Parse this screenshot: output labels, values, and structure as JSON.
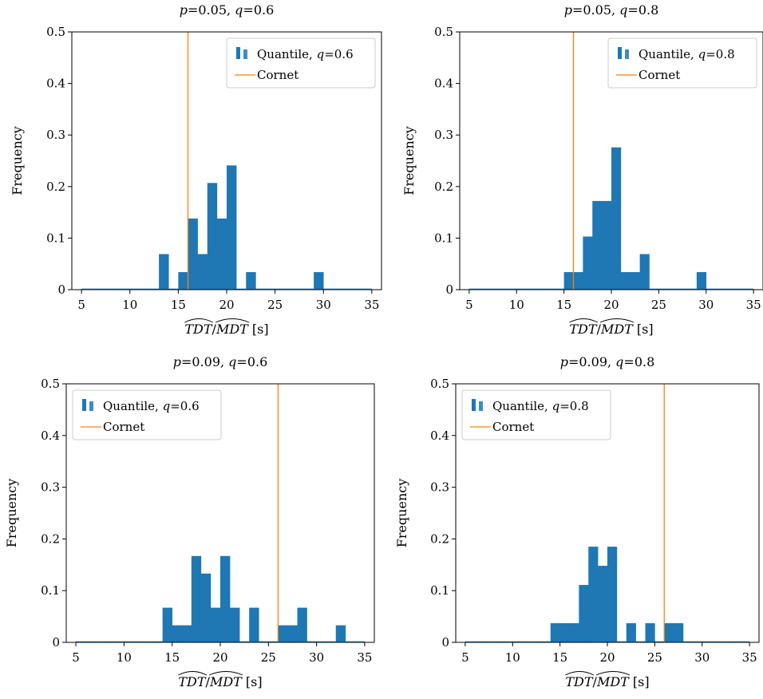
{
  "chart_data": [
    {
      "type": "bar",
      "title": "p=0.05, q=0.6",
      "xlabel": "TDT/MDT [s]",
      "ylabel": "Frequency",
      "xlim": [
        4,
        36
      ],
      "ylim": [
        0,
        0.5
      ],
      "xticks": [
        "5",
        "10",
        "15",
        "20",
        "25",
        "30",
        "35"
      ],
      "yticks": [
        "0",
        "0.1",
        "0.2",
        "0.3",
        "0.4",
        "0.5"
      ],
      "legend": {
        "position": "top-right",
        "entries": [
          "Quantile, q=0.6",
          "Cornet"
        ]
      },
      "cornet_x": 16.0,
      "bin_edges": [
        5,
        6,
        7,
        8,
        9,
        10,
        11,
        12,
        13,
        14,
        15,
        16,
        17,
        18,
        19,
        20,
        21,
        22,
        23,
        24,
        25,
        26,
        27,
        28,
        29,
        30,
        31,
        32,
        33,
        34,
        35
      ],
      "values": [
        0,
        0,
        0,
        0,
        0,
        0,
        0,
        0,
        0.069,
        0,
        0.034,
        0.138,
        0.069,
        0.207,
        0.138,
        0.241,
        0,
        0.034,
        0,
        0,
        0,
        0,
        0,
        0,
        0.034,
        0,
        0,
        0,
        0,
        0
      ],
      "bar_color": "#1f77b4",
      "line_color": "#ff7f0e"
    },
    {
      "type": "bar",
      "title": "p=0.05, q=0.8",
      "xlabel": "TDT/MDT [s]",
      "ylabel": "Frequency",
      "xlim": [
        4,
        36
      ],
      "ylim": [
        0,
        0.5
      ],
      "xticks": [
        "5",
        "10",
        "15",
        "20",
        "25",
        "30",
        "35"
      ],
      "yticks": [
        "0",
        "0.1",
        "0.2",
        "0.3",
        "0.4",
        "0.5"
      ],
      "legend": {
        "position": "top-right",
        "entries": [
          "Quantile, q=0.8",
          "Cornet"
        ]
      },
      "cornet_x": 16.0,
      "bin_edges": [
        5,
        6,
        7,
        8,
        9,
        10,
        11,
        12,
        13,
        14,
        15,
        16,
        17,
        18,
        19,
        20,
        21,
        22,
        23,
        24,
        25,
        26,
        27,
        28,
        29,
        30,
        31,
        32,
        33,
        34,
        35
      ],
      "values": [
        0,
        0,
        0,
        0,
        0,
        0,
        0,
        0,
        0,
        0,
        0.034,
        0.034,
        0.103,
        0.172,
        0.172,
        0.276,
        0.034,
        0.034,
        0.069,
        0,
        0,
        0,
        0,
        0,
        0.034,
        0,
        0,
        0,
        0,
        0
      ],
      "bar_color": "#1f77b4",
      "line_color": "#ff7f0e"
    },
    {
      "type": "bar",
      "title": "p=0.09, q=0.6",
      "xlabel": "TDT/MDT [s]",
      "ylabel": "Frequency",
      "xlim": [
        4,
        36
      ],
      "ylim": [
        0,
        0.5
      ],
      "xticks": [
        "5",
        "10",
        "15",
        "20",
        "25",
        "30",
        "35"
      ],
      "yticks": [
        "0",
        "0.1",
        "0.2",
        "0.3",
        "0.4",
        "0.5"
      ],
      "legend": {
        "position": "top-left",
        "entries": [
          "Quantile, q=0.6",
          "Cornet"
        ]
      },
      "cornet_x": 26.0,
      "bin_edges": [
        5,
        6,
        7,
        8,
        9,
        10,
        11,
        12,
        13,
        14,
        15,
        16,
        17,
        18,
        19,
        20,
        21,
        22,
        23,
        24,
        25,
        26,
        27,
        28,
        29,
        30,
        31,
        32,
        33,
        34,
        35
      ],
      "values": [
        0,
        0,
        0,
        0,
        0,
        0,
        0,
        0,
        0,
        0.067,
        0.033,
        0.033,
        0.167,
        0.133,
        0.067,
        0.167,
        0.067,
        0,
        0.067,
        0,
        0,
        0.033,
        0.033,
        0.067,
        0,
        0,
        0,
        0.033,
        0,
        0
      ],
      "bar_color": "#1f77b4",
      "line_color": "#ff7f0e"
    },
    {
      "type": "bar",
      "title": "p=0.09, q=0.8",
      "xlabel": "TDT/MDT [s]",
      "ylabel": "Frequency",
      "xlim": [
        4,
        36
      ],
      "ylim": [
        0,
        0.5
      ],
      "xticks": [
        "5",
        "10",
        "15",
        "20",
        "25",
        "30",
        "35"
      ],
      "yticks": [
        "0",
        "0.1",
        "0.2",
        "0.3",
        "0.4",
        "0.5"
      ],
      "legend": {
        "position": "top-left",
        "entries": [
          "Quantile, q=0.8",
          "Cornet"
        ]
      },
      "cornet_x": 26.0,
      "bin_edges": [
        5,
        6,
        7,
        8,
        9,
        10,
        11,
        12,
        13,
        14,
        15,
        16,
        17,
        18,
        19,
        20,
        21,
        22,
        23,
        24,
        25,
        26,
        27,
        28,
        29,
        30,
        31,
        32,
        33,
        34,
        35
      ],
      "values": [
        0,
        0,
        0,
        0,
        0,
        0,
        0,
        0,
        0,
        0.037,
        0.037,
        0.037,
        0.111,
        0.185,
        0.148,
        0.185,
        0,
        0.037,
        0,
        0.037,
        0,
        0.037,
        0.037,
        0,
        0,
        0,
        0,
        0,
        0,
        0
      ],
      "bar_color": "#1f77b4",
      "line_color": "#ff7f0e"
    }
  ]
}
